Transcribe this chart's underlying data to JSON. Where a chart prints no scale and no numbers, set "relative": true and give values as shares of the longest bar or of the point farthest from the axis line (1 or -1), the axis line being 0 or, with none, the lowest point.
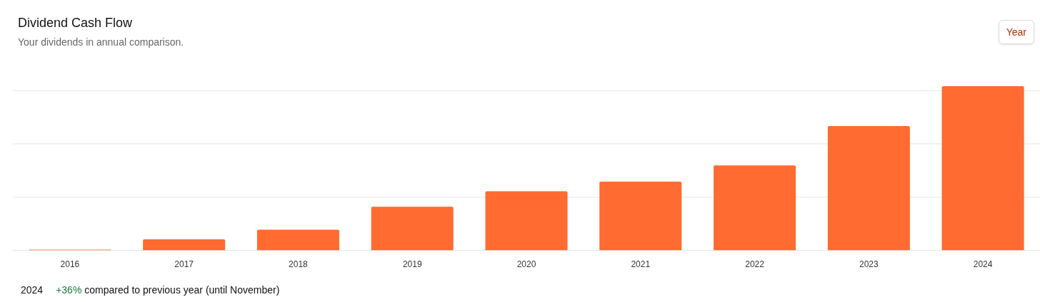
{
  "chart_data": {
    "type": "bar",
    "title": "Dividend Cash Flow",
    "subtitle": "Your dividends in annual comparison.",
    "categories": [
      "2016",
      "2017",
      "2018",
      "2019",
      "2020",
      "2021",
      "2022",
      "2023",
      "2024"
    ],
    "values": [
      0.005,
      0.068,
      0.126,
      0.266,
      0.36,
      0.419,
      0.518,
      0.757,
      1
    ],
    "color": "#ff6b30",
    "relative": true,
    "legend": false,
    "ref_lines": [
      {
        "axis": "y",
        "value": 0.324,
        "color": "#e5e5e5"
      },
      {
        "axis": "y",
        "value": 0.649,
        "color": "#e5e5e5"
      },
      {
        "axis": "y",
        "value": 0.973,
        "color": "#e5e5e5"
      }
    ],
    "annotations": [
      "Year",
      "2024",
      "+36%",
      "compared to previous year (until November)"
    ]
  }
}
